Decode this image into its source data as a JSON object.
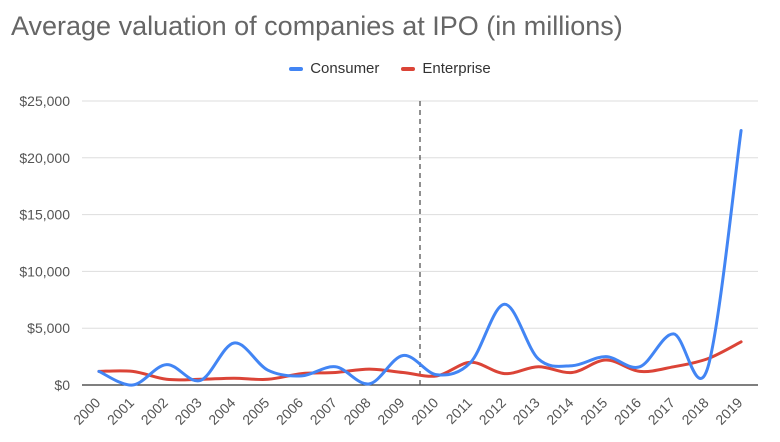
{
  "chart_data": {
    "type": "line",
    "title": "Average valuation of companies at IPO (in millions)",
    "xlabel": "",
    "ylabel": "",
    "categories": [
      "2000",
      "2001",
      "2002",
      "2003",
      "2004",
      "2005",
      "2006",
      "2007",
      "2008",
      "2009",
      "2010",
      "2011",
      "2012",
      "2013",
      "2014",
      "2015",
      "2016",
      "2017",
      "2018",
      "2019"
    ],
    "series": [
      {
        "name": "Consumer",
        "color": "#4285f4",
        "values": [
          1200,
          0,
          1800,
          400,
          3700,
          1300,
          800,
          1600,
          100,
          2600,
          900,
          2000,
          7100,
          2300,
          1700,
          2500,
          1600,
          4500,
          1400,
          22400
        ]
      },
      {
        "name": "Enterprise",
        "color": "#db4437",
        "values": [
          1200,
          1200,
          500,
          500,
          600,
          500,
          1000,
          1100,
          1400,
          1100,
          800,
          2000,
          1000,
          1600,
          1100,
          2200,
          1200,
          1600,
          2300,
          3800
        ]
      }
    ],
    "yticks": [
      "$0",
      "$5,000",
      "$10,000",
      "$15,000",
      "$20,000",
      "$25,000"
    ],
    "ytick_values": [
      0,
      5000,
      10000,
      15000,
      20000,
      25000
    ],
    "ylim": [
      0,
      25000
    ],
    "grid": true,
    "legend_position": "top",
    "annotation": {
      "type": "vertical-dashed-line",
      "x_between": [
        "2009",
        "2010"
      ]
    }
  }
}
